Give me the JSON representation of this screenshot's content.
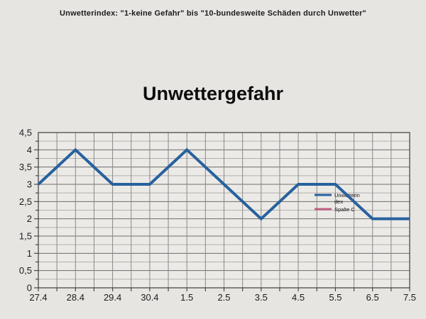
{
  "page": {
    "background": "#e7e5e2",
    "header": "Unwetterindex: \"1-keine Gefahr\" bis \"10-bundesweite Schäden durch Unwetter\""
  },
  "chart_data": {
    "type": "line",
    "title": "Unwettergefahr",
    "categories": [
      "27.4",
      "28.4",
      "29.4",
      "30.4",
      "1.5",
      "2.5",
      "3.5",
      "4.5",
      "5.5",
      "6.5",
      "7.5"
    ],
    "series": [
      {
        "name": "Unwetterindex",
        "legend_lines": [
          "Unwetterin",
          "dex"
        ],
        "color": "#27619e",
        "values": [
          3,
          4,
          3,
          3,
          4,
          3,
          2,
          3,
          3,
          2,
          2
        ]
      },
      {
        "name": "Spalte C",
        "legend_lines": [
          "Spalte C"
        ],
        "color": "#c06080",
        "values": []
      }
    ],
    "xlabel": "",
    "ylabel": "",
    "ylim": [
      0,
      4.5
    ],
    "ytick_step": 0.5,
    "ytick_labels": [
      "0",
      "0,5",
      "1",
      "1,5",
      "2",
      "2,5",
      "3",
      "3,5",
      "4",
      "4,5"
    ],
    "grid": "major+minor horizontal, half-category vertical",
    "legend_position": "inside-right",
    "colors": {
      "major_grid": "#6f6d6b",
      "minor_grid": "#b3b1af",
      "vertical_grid": "#8b8987",
      "axis": "#3d3d3d",
      "plot_background": "#eceae7"
    }
  }
}
